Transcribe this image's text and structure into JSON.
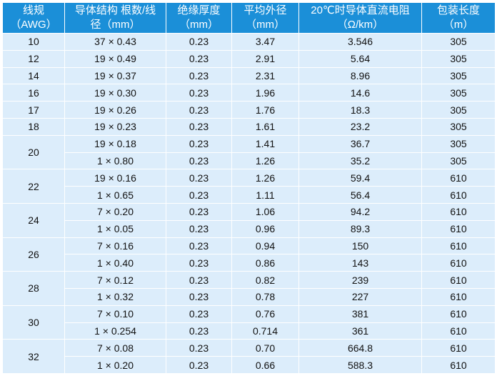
{
  "header": [
    [
      "线规",
      "（AWG）"
    ],
    [
      "导体结构 根数/线",
      "径（mm）"
    ],
    [
      "绝缘厚度",
      "（mm）"
    ],
    [
      "平均外径",
      "（mm）"
    ],
    [
      "20℃时导体直流电阻",
      "（Ω/km）"
    ],
    [
      "包装长度",
      "（m）"
    ]
  ],
  "groups": [
    {
      "awg": "10",
      "rows": [
        [
          "37 × 0.43",
          "0.23",
          "3.47",
          "3.546",
          "305"
        ]
      ]
    },
    {
      "awg": "12",
      "rows": [
        [
          "19 × 0.49",
          "0.23",
          "2.91",
          "5.64",
          "305"
        ]
      ]
    },
    {
      "awg": "14",
      "rows": [
        [
          "19 × 0.37",
          "0.23",
          "2.31",
          "8.96",
          "305"
        ]
      ]
    },
    {
      "awg": "16",
      "rows": [
        [
          "19 × 0.30",
          "0.23",
          "1.96",
          "14.6",
          "305"
        ]
      ]
    },
    {
      "awg": "17",
      "rows": [
        [
          "19 × 0.26",
          "0.23",
          "1.76",
          "18.3",
          "305"
        ]
      ]
    },
    {
      "awg": "18",
      "rows": [
        [
          "19 × 0.23",
          "0.23",
          "1.61",
          "23.2",
          "305"
        ]
      ]
    },
    {
      "awg": "20",
      "rows": [
        [
          "19 × 0.18",
          "0.23",
          "1.41",
          "36.7",
          "305"
        ],
        [
          "1 × 0.80",
          "0.23",
          "1.26",
          "35.2",
          "305"
        ]
      ]
    },
    {
      "awg": "22",
      "rows": [
        [
          "19 × 0.16",
          "0.23",
          "1.26",
          "59.4",
          "610"
        ],
        [
          "1 × 0.65",
          "0.23",
          "1.11",
          "56.4",
          "610"
        ]
      ]
    },
    {
      "awg": "24",
      "rows": [
        [
          "7 × 0.20",
          "0.23",
          "1.06",
          "94.2",
          "610"
        ],
        [
          "1 × 0.05",
          "0.23",
          "0.96",
          "89.3",
          "610"
        ]
      ]
    },
    {
      "awg": "26",
      "rows": [
        [
          "7 × 0.16",
          "0.23",
          "0.94",
          "150",
          "610"
        ],
        [
          "1 × 0.40",
          "0.23",
          "0.86",
          "143",
          "610"
        ]
      ]
    },
    {
      "awg": "28",
      "rows": [
        [
          "7 × 0.12",
          "0.23",
          "0.82",
          "239",
          "610"
        ],
        [
          "1 × 0.32",
          "0.23",
          "0.78",
          "227",
          "610"
        ]
      ]
    },
    {
      "awg": "30",
      "rows": [
        [
          "7 × 0.10",
          "0.23",
          "0.76",
          "381",
          "610"
        ],
        [
          "1 × 0.254",
          "0.23",
          "0.714",
          "361",
          "610"
        ]
      ]
    },
    {
      "awg": "32",
      "rows": [
        [
          "7 × 0.08",
          "0.23",
          "0.70",
          "664.8",
          "610"
        ],
        [
          "1 × 0.20",
          "0.23",
          "0.66",
          "588.3",
          "610"
        ]
      ]
    }
  ]
}
